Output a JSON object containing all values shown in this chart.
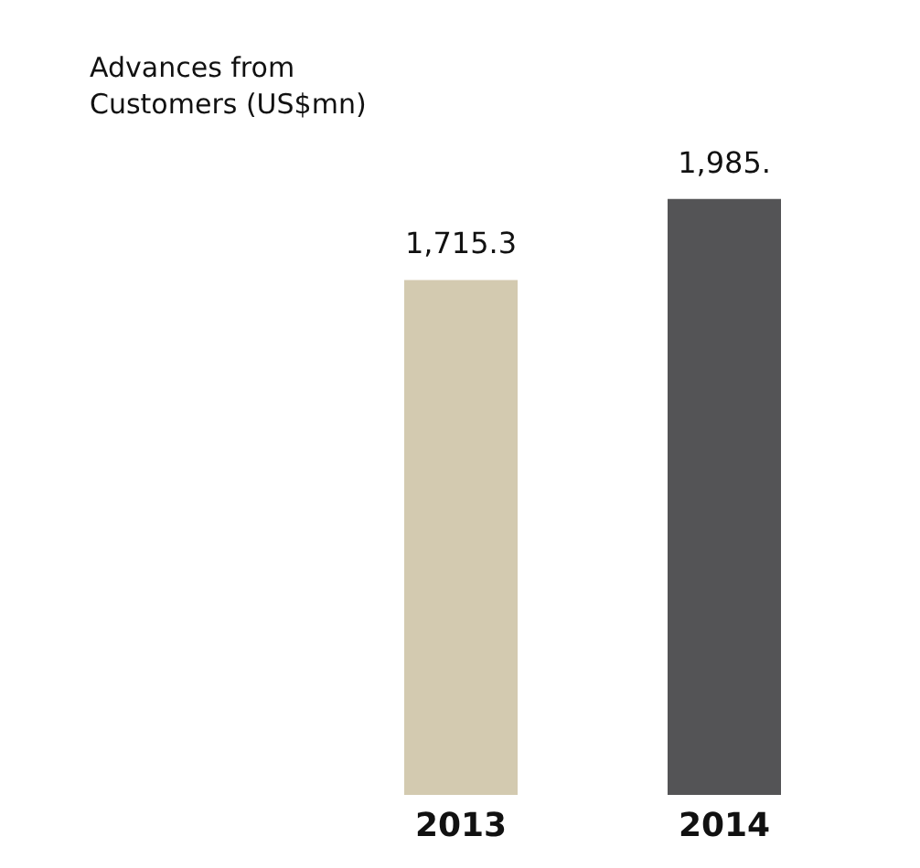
{
  "chart_data": {
    "type": "bar",
    "title": "Advances from\nCustomers (US$mn)",
    "categories": [
      "2013",
      "2014"
    ],
    "values": [
      1715.3,
      1985
    ],
    "colors": [
      "#d3cab0",
      "#545456"
    ],
    "value_labels": [
      "1,715.3",
      "1,985."
    ]
  }
}
